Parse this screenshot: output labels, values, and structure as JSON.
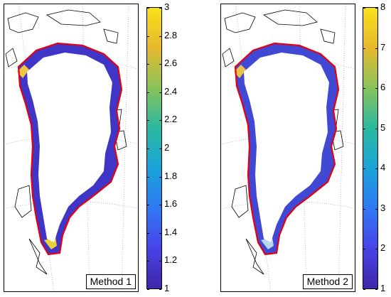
{
  "colors": {
    "ice_margin": "#e3000f",
    "coastline": "#000000",
    "interior": "#ffffff",
    "grid": "#b0b0b0",
    "colormap": [
      "#3e26a8",
      "#4743e9",
      "#2f79f4",
      "#1aa3d9",
      "#2ab9a0",
      "#87c35a",
      "#e7b82e",
      "#f9e01a"
    ]
  },
  "panels": [
    {
      "label": "Method 1",
      "colorbar": {
        "min": 1,
        "max": 3,
        "ticks": [
          "3",
          "2.8",
          "2.6",
          "2.4",
          "2.2",
          "2",
          "1.8",
          "1.6",
          "1.4",
          "1.2",
          "1"
        ]
      }
    },
    {
      "label": "Method 2",
      "colorbar": {
        "min": 1,
        "max": 8,
        "ticks": [
          "8",
          "7",
          "6",
          "5",
          "4",
          "3",
          "2",
          "1"
        ]
      }
    }
  ]
}
